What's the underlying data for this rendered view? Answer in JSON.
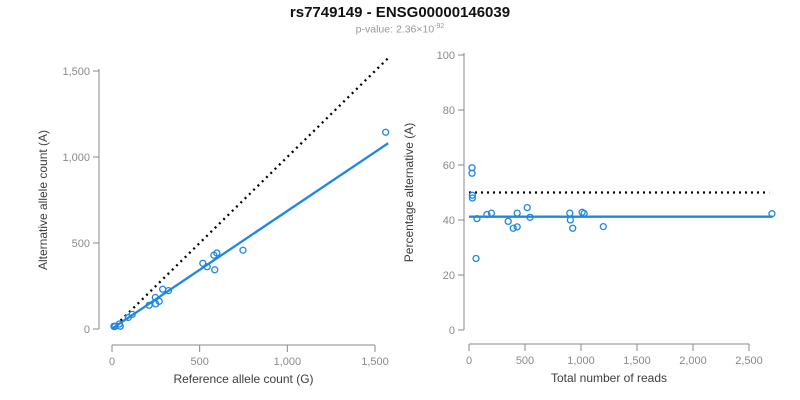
{
  "header": {
    "title": "rs7749149 - ENSG00000146039",
    "p_value_label": "p-value: 2.36×10",
    "p_value_exponent": "-92"
  },
  "colors": {
    "accent_blue": "#1E87E5",
    "identity_black": "#000000",
    "axis_line": "#888888",
    "tick_label": "#8a8a8a",
    "axis_title": "#3d3d3d",
    "title_text": "#111111",
    "subtitle_text": "#999999"
  },
  "chart_data": [
    {
      "type": "scatter",
      "name": "allele-counts-scatter",
      "xlabel": "Reference allele count (G)",
      "ylabel": "Alternative allele count (A)",
      "xlim": [
        0,
        1580
      ],
      "ylim": [
        0,
        1580
      ],
      "xticks": [
        0,
        500,
        1000,
        1500
      ],
      "yticks": [
        0,
        500,
        1000,
        1500
      ],
      "grid": false,
      "point_color": "#1E87E5",
      "points": [
        [
          11,
          16
        ],
        [
          12,
          15
        ],
        [
          15,
          15
        ],
        [
          16,
          14
        ],
        [
          47,
          16
        ],
        [
          42,
          29
        ],
        [
          93,
          67
        ],
        [
          115,
          85
        ],
        [
          212,
          138
        ],
        [
          249,
          146
        ],
        [
          269,
          161
        ],
        [
          247,
          183
        ],
        [
          289,
          231
        ],
        [
          322,
          223
        ],
        [
          518,
          382
        ],
        [
          543,
          362
        ],
        [
          586,
          344
        ],
        [
          581,
          429
        ],
        [
          598,
          442
        ],
        [
          747,
          458
        ],
        [
          1561,
          1144
        ]
      ],
      "lines": [
        {
          "name": "identity-line",
          "style": "dotted",
          "color": "#000000",
          "x1": 0,
          "y1": 0,
          "x2": 1580,
          "y2": 1580
        },
        {
          "name": "regression-line",
          "style": "solid",
          "color": "#1E87E5",
          "x1": 0,
          "y1": 2,
          "x2": 1575,
          "y2": 1080
        }
      ]
    },
    {
      "type": "scatter",
      "name": "percentage-vs-reads-scatter",
      "xlabel": "Total number of reads",
      "ylabel": "Percentage alternative (A)",
      "xlim": [
        0,
        2750
      ],
      "ylim": [
        0,
        100
      ],
      "xticks": [
        0,
        500,
        1000,
        1500,
        2000,
        2500
      ],
      "yticks": [
        0,
        20,
        40,
        60,
        80,
        100
      ],
      "grid": false,
      "point_color": "#1E87E5",
      "points": [
        [
          27,
          59
        ],
        [
          27,
          57
        ],
        [
          30,
          49
        ],
        [
          30,
          48
        ],
        [
          63,
          26
        ],
        [
          71,
          40.5
        ],
        [
          160,
          42
        ],
        [
          200,
          42.5
        ],
        [
          350,
          39.5
        ],
        [
          395,
          37
        ],
        [
          430,
          37.5
        ],
        [
          430,
          42.5
        ],
        [
          520,
          44.5
        ],
        [
          545,
          41
        ],
        [
          900,
          42.5
        ],
        [
          905,
          40
        ],
        [
          926,
          37
        ],
        [
          1010,
          42.8
        ],
        [
          1028,
          42.4
        ],
        [
          1199,
          37.6
        ],
        [
          2705,
          42.3
        ]
      ],
      "lines": [
        {
          "name": "fifty-percent-line",
          "style": "dotted",
          "color": "#000000",
          "x1": 0,
          "y1": 50,
          "x2": 2680,
          "y2": 50
        },
        {
          "name": "mean-percentage-line",
          "style": "solid",
          "color": "#1E87E5",
          "x1": 0,
          "y1": 41.2,
          "x2": 2710,
          "y2": 41.2
        }
      ]
    }
  ]
}
